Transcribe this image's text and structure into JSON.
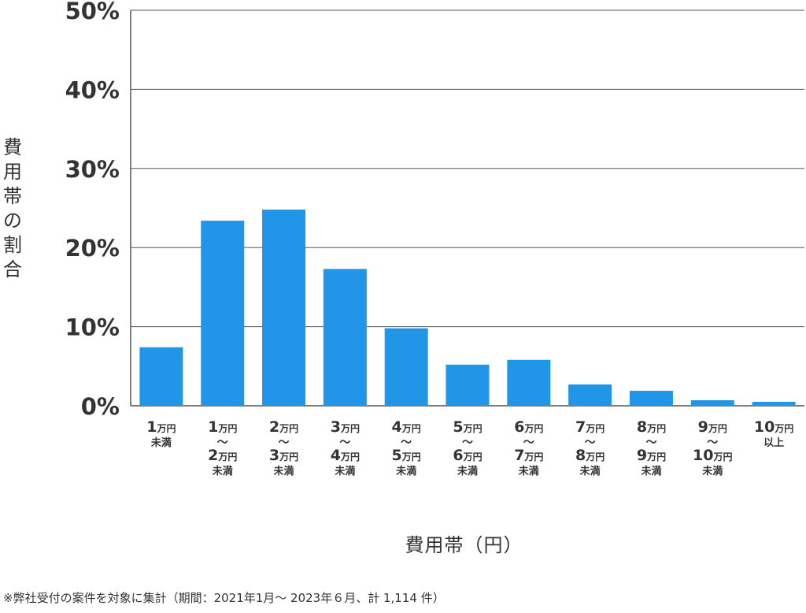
{
  "chart_data": {
    "type": "bar",
    "categories": [
      [
        "1万円",
        "未満"
      ],
      [
        "1万円",
        "〜",
        "2万円",
        "未満"
      ],
      [
        "2万円",
        "〜",
        "3万円",
        "未満"
      ],
      [
        "3万円",
        "〜",
        "4万円",
        "未満"
      ],
      [
        "4万円",
        "〜",
        "5万円",
        "未満"
      ],
      [
        "5万円",
        "〜",
        "6万円",
        "未満"
      ],
      [
        "6万円",
        "〜",
        "7万円",
        "未満"
      ],
      [
        "7万円",
        "〜",
        "8万円",
        "未満"
      ],
      [
        "8万円",
        "〜",
        "9万円",
        "未満"
      ],
      [
        "9万円",
        "〜",
        "10万円",
        "未満"
      ],
      [
        "10万円",
        "以上"
      ]
    ],
    "values": [
      7.4,
      23.4,
      24.8,
      17.3,
      9.8,
      5.2,
      5.8,
      2.7,
      1.9,
      0.7,
      0.5
    ],
    "ylim": [
      0,
      50
    ],
    "yticks": [
      "0%",
      "10%",
      "20%",
      "30%",
      "40%",
      "50%"
    ],
    "ylabel": "費用帯の割合",
    "xlabel": "費用帯（円）",
    "bar_color": "#2196e8",
    "grid": true
  },
  "footnote": "※弊社受付の案件を対象に集計（期間：2021年1月〜 2023年６月、計 1,114 件）"
}
